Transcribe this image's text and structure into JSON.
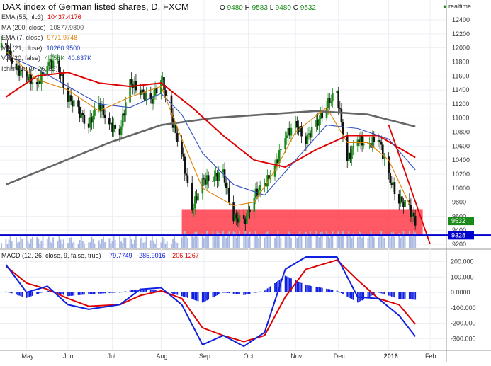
{
  "header": {
    "symbol_title": "DAX index of German listed shares, D, FXCM",
    "ohlc": {
      "o_label": "O",
      "o": "9480",
      "h_label": "H",
      "h": "9583",
      "l_label": "L",
      "l": "9480",
      "c_label": "C",
      "c": "9532"
    },
    "realtime_label": "realtime"
  },
  "indicators": [
    {
      "name": "EMA (55, hlc3)",
      "value": "10437.4176",
      "color": "#e00000"
    },
    {
      "name": "MA (200, close)",
      "value": "10877.9800",
      "color": "#555555"
    },
    {
      "name": "EMA (7, close)",
      "value": "9771.9748",
      "color": "#e08000"
    },
    {
      "name": "MA (21, close)",
      "value": "10260.9500",
      "color": "#2040c0"
    },
    {
      "name": "Vol (20, false)",
      "value": "4.758K",
      "value2": "40.637K",
      "color": "#2a7a2a"
    },
    {
      "name": "Ichimoku (9, 26, 52)",
      "value": "",
      "color": "#777777"
    }
  ],
  "macd_legend": {
    "name": "MACD (12, 26, close, 9, false, true)",
    "v1": "-79.7749",
    "v2": "-285.9016",
    "v3": "-206.1267"
  },
  "colors": {
    "ema55": "#e00000",
    "ma200": "#666666",
    "ema7": "#e08000",
    "ma21": "#3050c0",
    "up": "#1a8a1a",
    "down": "#111111",
    "zone": "#ff2a3a",
    "support": "#0000cc",
    "volume": "#a8b8e0",
    "macd": "#1020e0",
    "signal": "#e00000",
    "hist": "#1020e0"
  },
  "chart_data": [
    {
      "type": "line",
      "title": "DAX index of German listed shares, D, FXCM",
      "x_ticks": [
        "May",
        "Jun",
        "Jul",
        "Aug",
        "Sep",
        "Oct",
        "Nov",
        "Dec",
        "2016",
        "Feb"
      ],
      "y_ticks": [
        9200,
        9400,
        9600,
        9800,
        10000,
        10200,
        10400,
        10600,
        10800,
        11000,
        11200,
        11400,
        11600,
        11800,
        12000,
        12200,
        12400
      ],
      "ylim": [
        9100,
        12500
      ],
      "last_price_label": "9532",
      "support_level": 9328,
      "support_label": "9328",
      "supply_zone": [
        9328,
        9700
      ],
      "close_series": [
        [
          "2015-04-20",
          12000
        ],
        [
          "2015-04-27",
          11700
        ],
        [
          "2015-05-04",
          11600
        ],
        [
          "2015-05-11",
          11450
        ],
        [
          "2015-05-18",
          11800
        ],
        [
          "2015-05-25",
          11750
        ],
        [
          "2015-06-01",
          11300
        ],
        [
          "2015-06-08",
          11100
        ],
        [
          "2015-06-15",
          10900
        ],
        [
          "2015-06-22",
          11200
        ],
        [
          "2015-06-29",
          10900
        ],
        [
          "2015-07-06",
          10800
        ],
        [
          "2015-07-13",
          11500
        ],
        [
          "2015-07-20",
          11400
        ],
        [
          "2015-07-27",
          11200
        ],
        [
          "2015-08-03",
          11600
        ],
        [
          "2015-08-10",
          11000
        ],
        [
          "2015-08-17",
          10500
        ],
        [
          "2015-08-24",
          9700
        ],
        [
          "2015-08-31",
          10100
        ],
        [
          "2015-09-07",
          10150
        ],
        [
          "2015-09-14",
          10200
        ],
        [
          "2015-09-21",
          9600
        ],
        [
          "2015-09-28",
          9500
        ],
        [
          "2015-10-05",
          9900
        ],
        [
          "2015-10-12",
          10050
        ],
        [
          "2015-10-19",
          10300
        ],
        [
          "2015-10-26",
          10750
        ],
        [
          "2015-11-02",
          10900
        ],
        [
          "2015-11-09",
          10700
        ],
        [
          "2015-11-16",
          10900
        ],
        [
          "2015-11-23",
          11200
        ],
        [
          "2015-11-30",
          11350
        ],
        [
          "2015-12-07",
          10400
        ],
        [
          "2015-12-14",
          10700
        ],
        [
          "2015-12-21",
          10600
        ],
        [
          "2015-12-28",
          10740
        ],
        [
          "2016-01-04",
          10150
        ],
        [
          "2016-01-11",
          9850
        ],
        [
          "2016-01-18",
          9700
        ],
        [
          "2016-01-22",
          9532
        ]
      ],
      "ema7": [
        [
          "2015-04-20",
          11950
        ],
        [
          "2015-05-11",
          11550
        ],
        [
          "2015-06-01",
          11400
        ],
        [
          "2015-06-22",
          11100
        ],
        [
          "2015-07-13",
          11300
        ],
        [
          "2015-08-03",
          11450
        ],
        [
          "2015-08-17",
          10700
        ],
        [
          "2015-08-31",
          10000
        ],
        [
          "2015-09-21",
          9750
        ],
        [
          "2015-10-05",
          9800
        ],
        [
          "2015-10-19",
          10250
        ],
        [
          "2015-11-02",
          10800
        ],
        [
          "2015-11-23",
          11150
        ],
        [
          "2015-12-07",
          10650
        ],
        [
          "2015-12-21",
          10650
        ],
        [
          "2016-01-04",
          10400
        ],
        [
          "2016-01-18",
          9771
        ]
      ],
      "ma21": [
        [
          "2015-04-20",
          11900
        ],
        [
          "2015-05-11",
          11700
        ],
        [
          "2015-06-01",
          11450
        ],
        [
          "2015-06-22",
          11200
        ],
        [
          "2015-07-13",
          11150
        ],
        [
          "2015-08-03",
          11350
        ],
        [
          "2015-08-17",
          11050
        ],
        [
          "2015-08-31",
          10500
        ],
        [
          "2015-09-21",
          10050
        ],
        [
          "2015-10-12",
          9900
        ],
        [
          "2015-11-02",
          10400
        ],
        [
          "2015-11-23",
          10900
        ],
        [
          "2015-12-14",
          10850
        ],
        [
          "2016-01-04",
          10700
        ],
        [
          "2016-01-22",
          10260
        ]
      ],
      "ema55": [
        [
          "2015-04-20",
          11300
        ],
        [
          "2015-05-11",
          11600
        ],
        [
          "2015-06-01",
          11650
        ],
        [
          "2015-06-22",
          11500
        ],
        [
          "2015-07-13",
          11450
        ],
        [
          "2015-08-03",
          11500
        ],
        [
          "2015-08-24",
          11150
        ],
        [
          "2015-09-14",
          10750
        ],
        [
          "2015-10-05",
          10400
        ],
        [
          "2015-10-26",
          10300
        ],
        [
          "2015-11-16",
          10550
        ],
        [
          "2015-12-07",
          10750
        ],
        [
          "2015-12-28",
          10750
        ],
        [
          "2016-01-22",
          10437
        ]
      ],
      "ma200": [
        [
          "2015-04-20",
          10050
        ],
        [
          "2015-05-25",
          10350
        ],
        [
          "2015-06-29",
          10650
        ],
        [
          "2015-08-03",
          10900
        ],
        [
          "2015-09-07",
          11000
        ],
        [
          "2015-10-12",
          11050
        ],
        [
          "2015-11-16",
          11100
        ],
        [
          "2015-12-21",
          11050
        ],
        [
          "2016-01-22",
          10878
        ]
      ],
      "projection_line": [
        [
          "2016-01-04",
          10900
        ],
        [
          "2016-02-01",
          9200
        ]
      ]
    },
    {
      "type": "line",
      "title": "MACD (12, 26, close, 9, false, true)",
      "y_ticks": [
        200,
        100,
        0,
        -100,
        -200,
        -300
      ],
      "ylim": [
        -360,
        250
      ],
      "series": [
        {
          "values": [
            [
              "2015-04-20",
              180
            ],
            [
              "2015-05-04",
              0
            ],
            [
              "2015-05-18",
              40
            ],
            [
              "2015-06-01",
              -80
            ],
            [
              "2015-06-15",
              -110
            ],
            [
              "2015-07-06",
              -80
            ],
            [
              "2015-07-20",
              20
            ],
            [
              "2015-08-03",
              30
            ],
            [
              "2015-08-17",
              -80
            ],
            [
              "2015-08-31",
              -340
            ],
            [
              "2015-09-14",
              -280
            ],
            [
              "2015-09-28",
              -350
            ],
            [
              "2015-10-12",
              -260
            ],
            [
              "2015-10-26",
              150
            ],
            [
              "2015-11-09",
              230
            ],
            [
              "2015-11-30",
              230
            ],
            [
              "2015-12-14",
              -30
            ],
            [
              "2015-12-28",
              -40
            ],
            [
              "2016-01-11",
              -150
            ],
            [
              "2016-01-22",
              -286
            ]
          ]
        },
        {
          "values": [
            [
              "2015-04-20",
              170
            ],
            [
              "2015-05-04",
              60
            ],
            [
              "2015-05-18",
              20
            ],
            [
              "2015-06-01",
              -40
            ],
            [
              "2015-06-15",
              -90
            ],
            [
              "2015-07-06",
              -80
            ],
            [
              "2015-07-20",
              -20
            ],
            [
              "2015-08-03",
              10
            ],
            [
              "2015-08-17",
              -40
            ],
            [
              "2015-08-31",
              -230
            ],
            [
              "2015-09-14",
              -280
            ],
            [
              "2015-09-28",
              -320
            ],
            [
              "2015-10-12",
              -280
            ],
            [
              "2015-10-26",
              -30
            ],
            [
              "2015-11-09",
              150
            ],
            [
              "2015-11-30",
              210
            ],
            [
              "2015-12-14",
              80
            ],
            [
              "2015-12-28",
              -40
            ],
            [
              "2016-01-11",
              -80
            ],
            [
              "2016-01-22",
              -206
            ]
          ]
        }
      ]
    }
  ]
}
